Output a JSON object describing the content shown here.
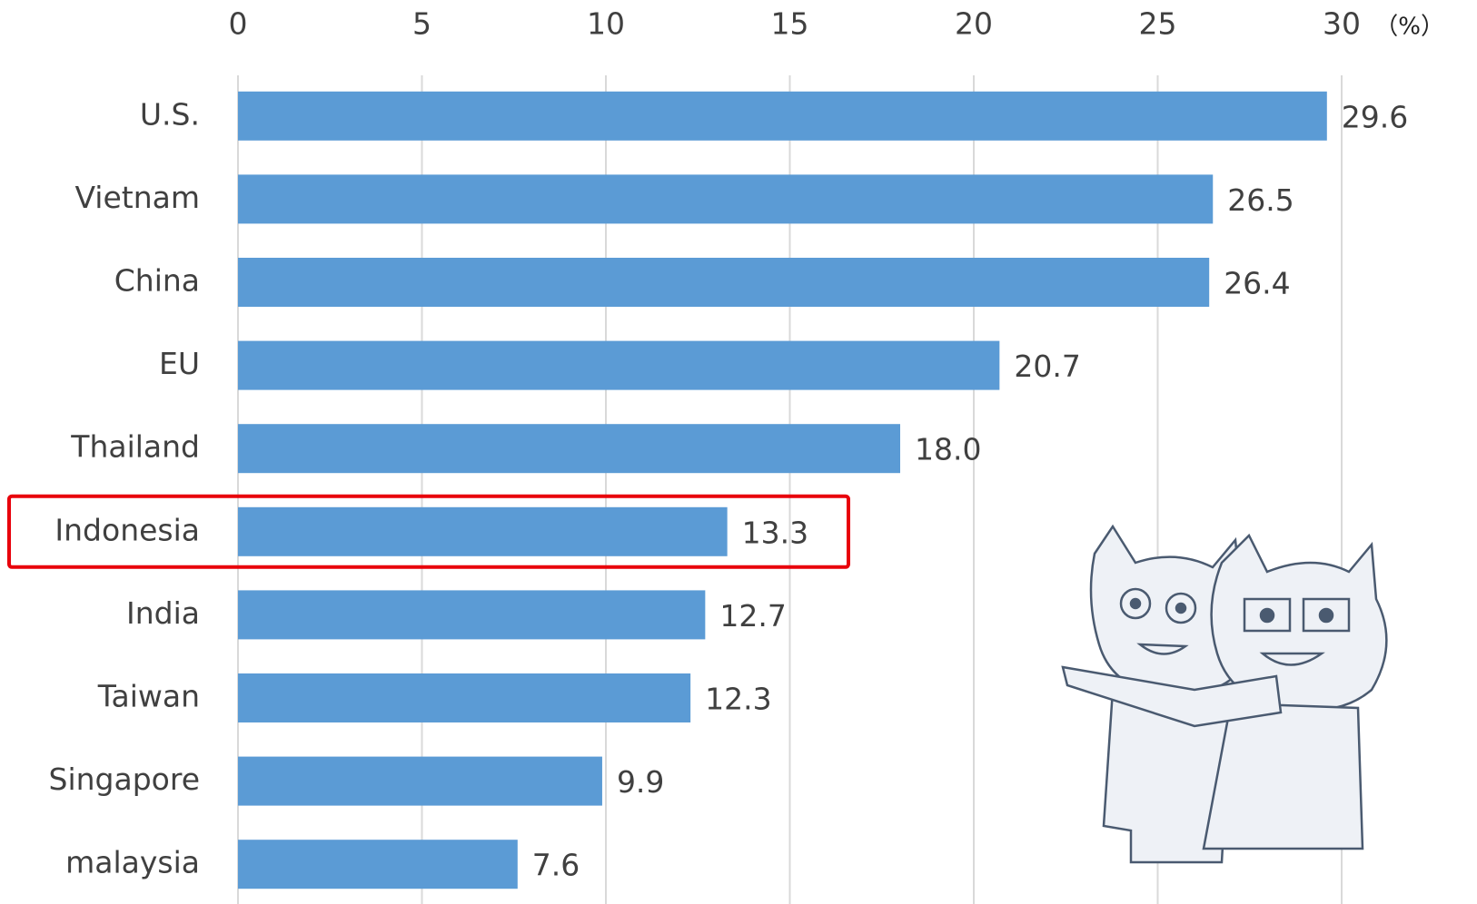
{
  "chart_data": {
    "type": "bar",
    "orientation": "horizontal",
    "unit_label": "（%）",
    "categories": [
      "U.S.",
      "Vietnam",
      "China",
      "EU",
      "Thailand",
      "Indonesia",
      "India",
      "Taiwan",
      "Singapore",
      "malaysia"
    ],
    "values": [
      29.6,
      26.5,
      26.4,
      20.7,
      18.0,
      13.3,
      12.7,
      12.3,
      9.9,
      7.6
    ],
    "value_labels": [
      "29.6",
      "26.5",
      "26.4",
      "20.7",
      "18.0",
      "13.3",
      "12.7",
      "12.3",
      "9.9",
      "7.6"
    ],
    "color": "#5b9bd5",
    "xlim": [
      0,
      30
    ],
    "xticks": [
      0,
      5,
      10,
      15,
      20,
      25,
      30
    ],
    "grid": true
  }
}
